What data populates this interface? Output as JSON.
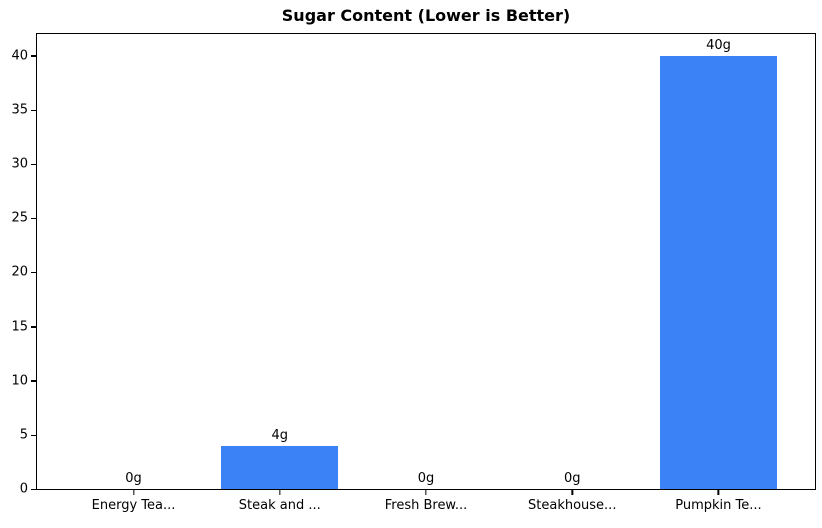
{
  "chart_data": {
    "type": "bar",
    "title": "Sugar Content (Lower is Better)",
    "categories": [
      "Energy Tea...",
      "Steak and ...",
      "Fresh Brew...",
      "Steakhouse...",
      "Pumpkin Te..."
    ],
    "values": [
      0,
      4,
      0,
      0,
      40
    ],
    "value_labels": [
      "0g",
      "4g",
      "0g",
      "0g",
      "40g"
    ],
    "unit": "g",
    "xlabel": "",
    "ylabel": "",
    "ylim": [
      0,
      42
    ],
    "y_ticks": [
      0,
      5,
      10,
      15,
      20,
      25,
      30,
      35,
      40
    ],
    "bar_color": "#3b82f6",
    "axis_color": "#000000",
    "background_color": "#ffffff",
    "grid": false,
    "legend": null,
    "bar_width_fraction": 0.8
  }
}
